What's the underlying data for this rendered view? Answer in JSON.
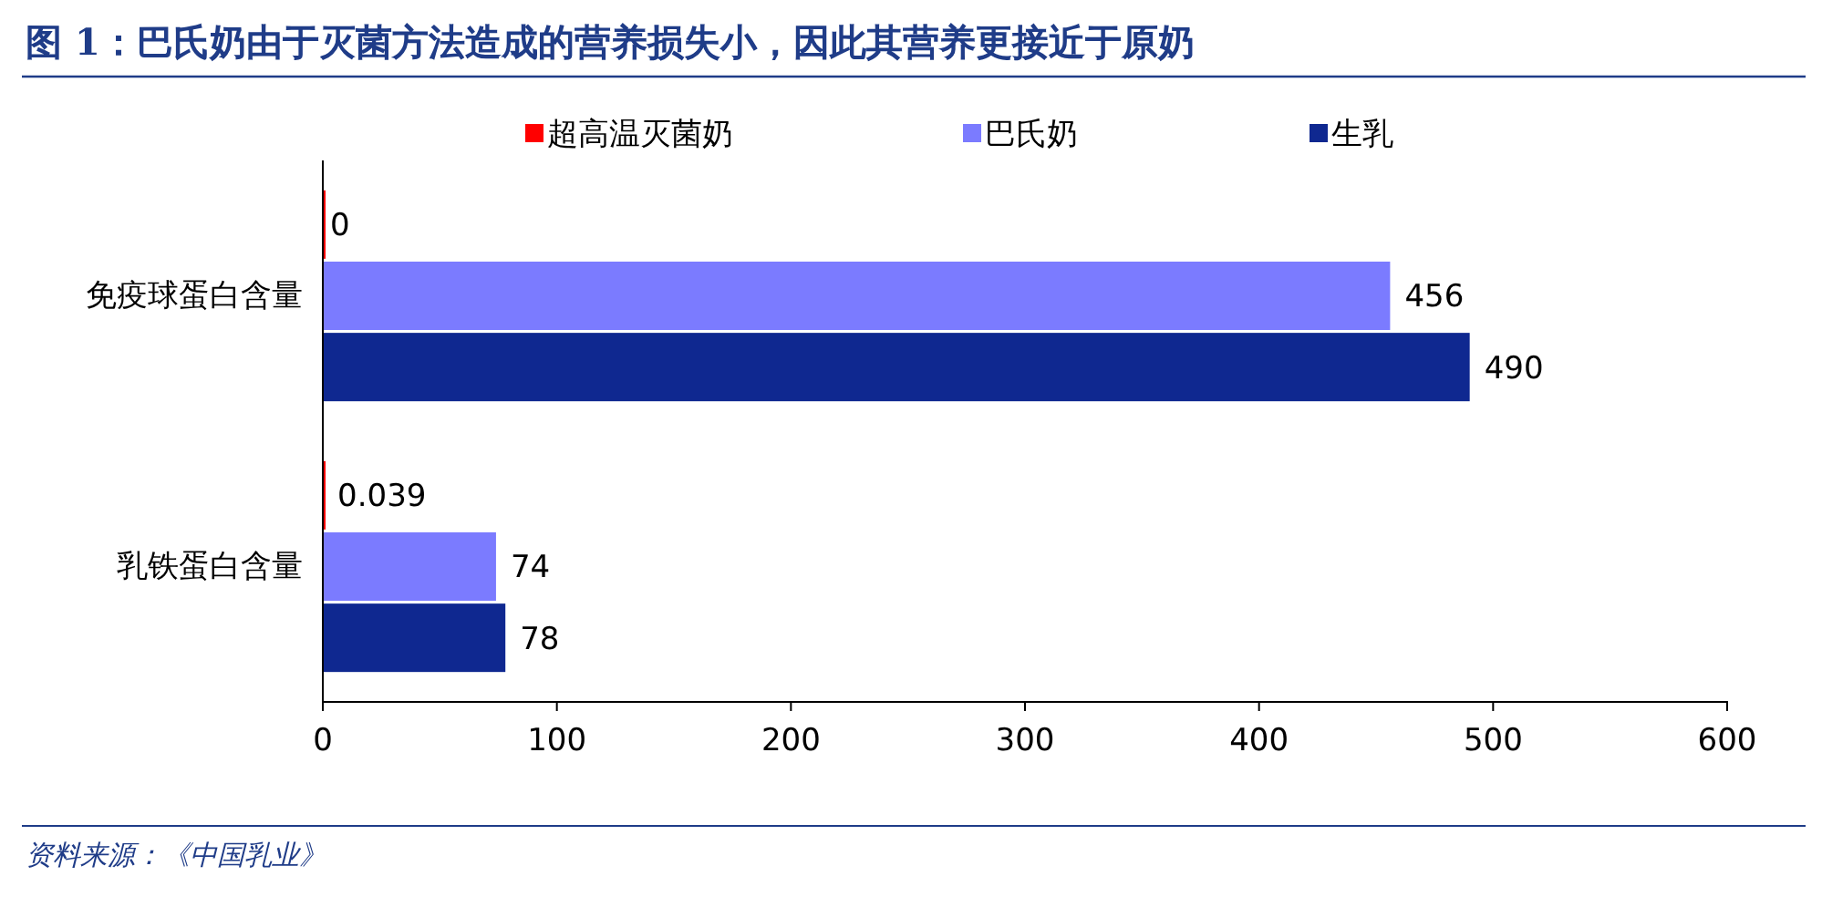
{
  "chart_data": {
    "type": "bar",
    "orientation": "horizontal",
    "title": "图 1：巴氏奶由于灭菌方法造成的营养损失小，因此其营养更接近于原奶",
    "categories": [
      "免疫球蛋白含量",
      "乳铁蛋白含量"
    ],
    "series": [
      {
        "name": "超高温灭菌奶",
        "color": "#ff0000",
        "values": [
          0,
          0.039
        ]
      },
      {
        "name": "巴氏奶",
        "color": "#7b7bff",
        "values": [
          456,
          74
        ]
      },
      {
        "name": "生乳",
        "color": "#0f2890",
        "values": [
          490,
          78
        ]
      }
    ],
    "xlim": [
      0,
      600
    ],
    "xticks": [
      0,
      100,
      200,
      300,
      400,
      500,
      600
    ],
    "data_labels": true,
    "legend": "top",
    "grid": false,
    "annotations": [
      "资料来源：《中国乳业》"
    ]
  }
}
